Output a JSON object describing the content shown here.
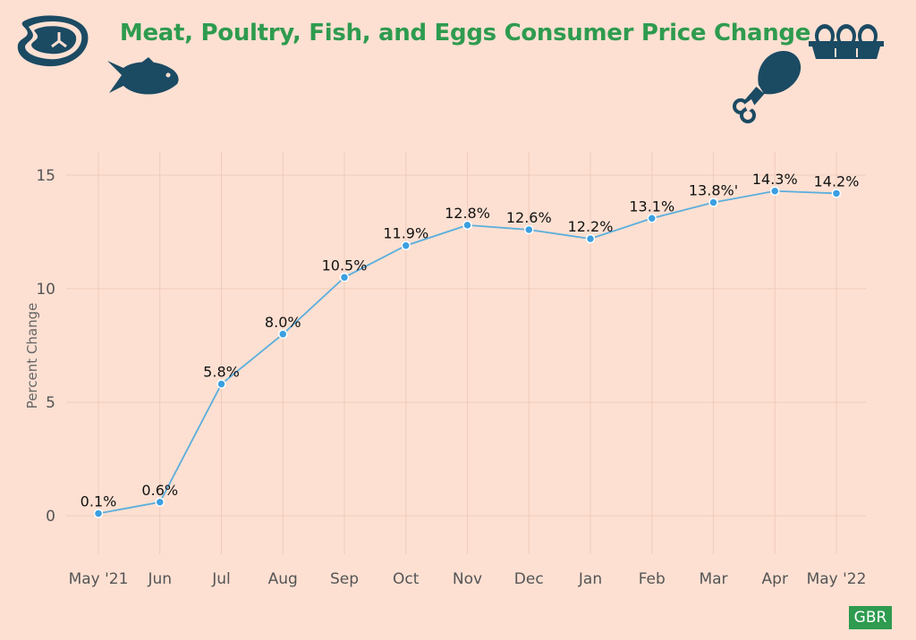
{
  "chart_data": {
    "type": "line",
    "title": "Meat, Poultry, Fish, and Eggs Consumer Price Change",
    "xlabel": "",
    "ylabel": "Percent Change",
    "ylim": [
      -2,
      16
    ],
    "yticks": [
      0,
      5,
      10,
      15
    ],
    "grid": true,
    "line_color": "#5aaedc",
    "point_color": "#3b9fe0",
    "categories": [
      "May '21",
      "Jun",
      "Jul",
      "Aug",
      "Sep",
      "Oct",
      "Nov",
      "Dec",
      "Jan",
      "Feb",
      "Mar",
      "Apr",
      "May '22"
    ],
    "values": [
      0.1,
      0.6,
      5.8,
      8.0,
      10.5,
      11.9,
      12.8,
      12.6,
      12.2,
      13.1,
      13.8,
      14.3,
      14.2
    ],
    "data_labels": [
      "0.1%",
      "0.6%",
      "5.8%",
      "8.0%",
      "10.5%",
      "11.9%",
      "12.8%",
      "12.6%",
      "12.2%",
      "13.1%",
      "13.8%'",
      "14.3%",
      "14.2%"
    ]
  },
  "icons": [
    "steak-icon",
    "fish-icon",
    "chicken-leg-icon",
    "egg-carton-icon"
  ],
  "colors": {
    "background": "#fde0d2",
    "title": "#2e9b4f",
    "icon": "#1b4a63",
    "badge": "#2e9b4f"
  },
  "badge": "GBR"
}
